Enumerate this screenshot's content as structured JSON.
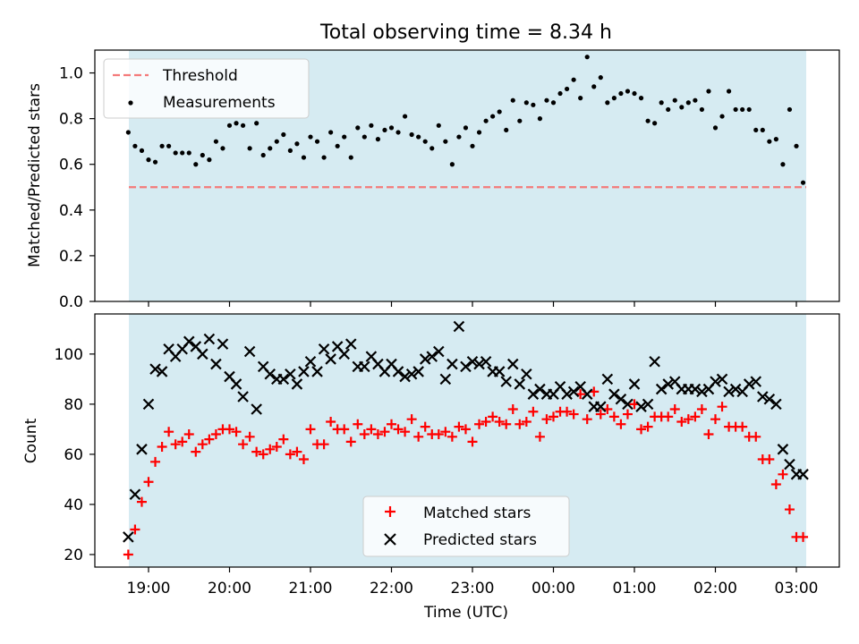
{
  "figure": {
    "title": "Total observing time = 8.34 h"
  },
  "chart_data": [
    {
      "type": "scatter",
      "ylabel": "Matched/Predicted stars",
      "xlabel": "",
      "x_ticks": [
        "19:00",
        "20:00",
        "21:00",
        "22:00",
        "23:00",
        "00:00",
        "01:00",
        "02:00",
        "03:00"
      ],
      "ylim": [
        0,
        1.1
      ],
      "y_ticks": [
        "0.0",
        "0.2",
        "0.4",
        "0.6",
        "0.8",
        "1.0"
      ],
      "grid": false,
      "legend_position": "top-left",
      "threshold": {
        "name": "Threshold",
        "value": 0.5,
        "color": "#f47a7a",
        "style": "dashed"
      },
      "series": [
        {
          "name": "Measurements",
          "marker": "dot",
          "color": "#000000",
          "x": [
            "18:45",
            "18:50",
            "18:55",
            "19:00",
            "19:05",
            "19:10",
            "19:15",
            "19:20",
            "19:25",
            "19:30",
            "19:35",
            "19:40",
            "19:45",
            "19:50",
            "19:55",
            "20:00",
            "20:05",
            "20:10",
            "20:15",
            "20:20",
            "20:25",
            "20:30",
            "20:35",
            "20:40",
            "20:45",
            "20:50",
            "20:55",
            "21:00",
            "21:05",
            "21:10",
            "21:15",
            "21:20",
            "21:25",
            "21:30",
            "21:35",
            "21:40",
            "21:45",
            "21:50",
            "21:55",
            "22:00",
            "22:05",
            "22:10",
            "22:15",
            "22:20",
            "22:25",
            "22:30",
            "22:35",
            "22:40",
            "22:45",
            "22:50",
            "22:55",
            "23:00",
            "23:05",
            "23:10",
            "23:15",
            "23:20",
            "23:25",
            "23:30",
            "23:35",
            "23:40",
            "23:45",
            "23:50",
            "23:55",
            "00:00",
            "00:05",
            "00:10",
            "00:15",
            "00:20",
            "00:25",
            "00:30",
            "00:35",
            "00:40",
            "00:45",
            "00:50",
            "00:55",
            "01:00",
            "01:05",
            "01:10",
            "01:15",
            "01:20",
            "01:25",
            "01:30",
            "01:35",
            "01:40",
            "01:45",
            "01:50",
            "01:55",
            "02:00",
            "02:05",
            "02:10",
            "02:15",
            "02:20",
            "02:25",
            "02:30",
            "02:35",
            "02:40",
            "02:45",
            "02:50",
            "02:55",
            "03:00",
            "03:05"
          ],
          "y": [
            0.74,
            0.68,
            0.66,
            0.62,
            0.61,
            0.68,
            0.68,
            0.65,
            0.65,
            0.65,
            0.6,
            0.64,
            0.62,
            0.7,
            0.67,
            0.77,
            0.78,
            0.77,
            0.67,
            0.78,
            0.64,
            0.67,
            0.7,
            0.73,
            0.66,
            0.69,
            0.63,
            0.72,
            0.7,
            0.63,
            0.74,
            0.68,
            0.72,
            0.63,
            0.76,
            0.72,
            0.77,
            0.71,
            0.75,
            0.76,
            0.74,
            0.81,
            0.73,
            0.72,
            0.7,
            0.67,
            0.77,
            0.7,
            0.6,
            0.72,
            0.76,
            0.68,
            0.74,
            0.79,
            0.81,
            0.83,
            0.75,
            0.88,
            0.79,
            0.87,
            0.86,
            0.8,
            0.88,
            0.87,
            0.91,
            0.93,
            0.97,
            0.89,
            1.07,
            0.94,
            0.98,
            0.87,
            0.89,
            0.91,
            0.92,
            0.91,
            0.89,
            0.79,
            0.78,
            0.87,
            0.84,
            0.88,
            0.85,
            0.87,
            0.88,
            0.84,
            0.92,
            0.76,
            0.81,
            0.92,
            0.84,
            0.84,
            0.84,
            0.75,
            0.75,
            0.7,
            0.71,
            0.6,
            0.84,
            0.68,
            0.52
          ]
        }
      ]
    },
    {
      "type": "scatter",
      "ylabel": "Count",
      "xlabel": "Time (UTC)",
      "x_ticks": [
        "19:00",
        "20:00",
        "21:00",
        "22:00",
        "23:00",
        "00:00",
        "01:00",
        "02:00",
        "03:00"
      ],
      "ylim": [
        15,
        116
      ],
      "y_ticks": [
        "20",
        "40",
        "60",
        "80",
        "100"
      ],
      "grid": false,
      "legend_position": "bottom-center",
      "series": [
        {
          "name": "Matched stars",
          "marker": "plus",
          "color": "#ff0000",
          "x": [
            "18:45",
            "18:50",
            "18:55",
            "19:00",
            "19:05",
            "19:10",
            "19:15",
            "19:20",
            "19:25",
            "19:30",
            "19:35",
            "19:40",
            "19:45",
            "19:50",
            "19:55",
            "20:00",
            "20:05",
            "20:10",
            "20:15",
            "20:20",
            "20:25",
            "20:30",
            "20:35",
            "20:40",
            "20:45",
            "20:50",
            "20:55",
            "21:00",
            "21:05",
            "21:10",
            "21:15",
            "21:20",
            "21:25",
            "21:30",
            "21:35",
            "21:40",
            "21:45",
            "21:50",
            "21:55",
            "22:00",
            "22:05",
            "22:10",
            "22:15",
            "22:20",
            "22:25",
            "22:30",
            "22:35",
            "22:40",
            "22:45",
            "22:50",
            "22:55",
            "23:00",
            "23:05",
            "23:10",
            "23:15",
            "23:20",
            "23:25",
            "23:30",
            "23:35",
            "23:40",
            "23:45",
            "23:50",
            "23:55",
            "00:00",
            "00:05",
            "00:10",
            "00:15",
            "00:20",
            "00:25",
            "00:30",
            "00:35",
            "00:40",
            "00:45",
            "00:50",
            "00:55",
            "01:00",
            "01:05",
            "01:10",
            "01:15",
            "01:20",
            "01:25",
            "01:30",
            "01:35",
            "01:40",
            "01:45",
            "01:50",
            "01:55",
            "02:00",
            "02:05",
            "02:10",
            "02:15",
            "02:20",
            "02:25",
            "02:30",
            "02:35",
            "02:40",
            "02:45",
            "02:50",
            "02:55",
            "03:00",
            "03:05"
          ],
          "y": [
            20,
            30,
            41,
            49,
            57,
            63,
            69,
            64,
            65,
            68,
            61,
            64,
            66,
            68,
            70,
            70,
            69,
            64,
            67,
            61,
            60,
            62,
            63,
            66,
            60,
            61,
            58,
            70,
            64,
            64,
            73,
            70,
            70,
            65,
            72,
            68,
            70,
            68,
            69,
            72,
            70,
            69,
            74,
            67,
            71,
            68,
            68,
            69,
            67,
            71,
            70,
            65,
            72,
            73,
            75,
            73,
            72,
            78,
            72,
            73,
            77,
            67,
            74,
            75,
            77,
            77,
            76,
            84,
            74,
            85,
            76,
            78,
            75,
            72,
            76,
            80,
            70,
            71,
            75,
            75,
            75,
            78,
            73,
            74,
            75,
            78,
            68,
            74,
            79,
            71,
            71,
            71,
            67,
            67,
            58,
            58,
            48,
            52,
            38,
            27,
            27
          ]
        },
        {
          "name": "Predicted stars",
          "marker": "x",
          "color": "#000000",
          "x": [
            "18:45",
            "18:50",
            "18:55",
            "19:00",
            "19:05",
            "19:10",
            "19:15",
            "19:20",
            "19:25",
            "19:30",
            "19:35",
            "19:40",
            "19:45",
            "19:50",
            "19:55",
            "20:00",
            "20:05",
            "20:10",
            "20:15",
            "20:20",
            "20:25",
            "20:30",
            "20:35",
            "20:40",
            "20:45",
            "20:50",
            "20:55",
            "21:00",
            "21:05",
            "21:10",
            "21:15",
            "21:20",
            "21:25",
            "21:30",
            "21:35",
            "21:40",
            "21:45",
            "21:50",
            "21:55",
            "22:00",
            "22:05",
            "22:10",
            "22:15",
            "22:20",
            "22:25",
            "22:30",
            "22:35",
            "22:40",
            "22:45",
            "22:50",
            "22:55",
            "23:00",
            "23:05",
            "23:10",
            "23:15",
            "23:20",
            "23:25",
            "23:30",
            "23:35",
            "23:40",
            "23:45",
            "23:50",
            "23:55",
            "00:00",
            "00:05",
            "00:10",
            "00:15",
            "00:20",
            "00:25",
            "00:30",
            "00:35",
            "00:40",
            "00:45",
            "00:50",
            "00:55",
            "01:00",
            "01:05",
            "01:10",
            "01:15",
            "01:20",
            "01:25",
            "01:30",
            "01:35",
            "01:40",
            "01:45",
            "01:50",
            "01:55",
            "02:00",
            "02:05",
            "02:10",
            "02:15",
            "02:20",
            "02:25",
            "02:30",
            "02:35",
            "02:40",
            "02:45",
            "02:50",
            "02:55",
            "03:00",
            "03:05"
          ],
          "y": [
            27,
            44,
            62,
            80,
            94,
            93,
            102,
            99,
            102,
            105,
            103,
            100,
            106,
            96,
            104,
            91,
            88,
            83,
            101,
            78,
            95,
            92,
            90,
            90,
            92,
            88,
            93,
            97,
            93,
            102,
            98,
            103,
            100,
            104,
            95,
            95,
            99,
            96,
            93,
            96,
            93,
            91,
            92,
            93,
            98,
            99,
            101,
            90,
            96,
            111,
            95,
            97,
            96,
            97,
            93,
            93,
            89,
            96,
            88,
            92,
            84,
            86,
            84,
            84,
            87,
            84,
            85,
            87,
            84,
            79,
            79,
            90,
            84,
            82,
            80,
            88,
            79,
            80,
            97,
            86,
            88,
            89,
            86,
            86,
            86,
            85,
            86,
            89,
            90,
            85,
            86,
            85,
            88,
            89,
            83,
            82,
            80,
            62,
            56,
            52,
            52
          ]
        }
      ]
    }
  ]
}
